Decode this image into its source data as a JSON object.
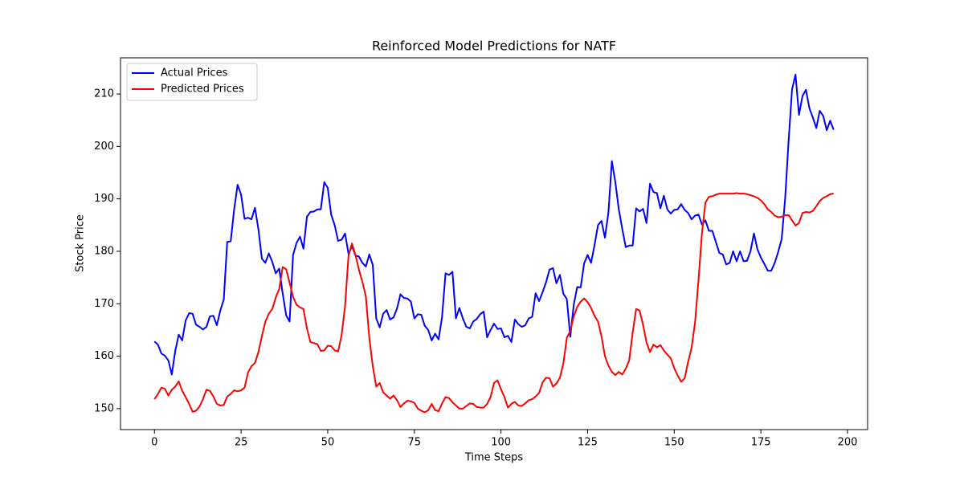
{
  "chart_data": {
    "type": "line",
    "title": "Reinforced Model Predictions for NATF",
    "xlabel": "Time Steps",
    "ylabel": "Stock Price",
    "x": [
      0,
      1,
      2,
      3,
      4,
      5,
      6,
      7,
      8,
      9,
      10,
      11,
      12,
      13,
      14,
      15,
      16,
      17,
      18,
      19,
      20,
      21,
      22,
      23,
      24,
      25,
      26,
      27,
      28,
      29,
      30,
      31,
      32,
      33,
      34,
      35,
      36,
      37,
      38,
      39,
      40,
      41,
      42,
      43,
      44,
      45,
      46,
      47,
      48,
      49,
      50,
      51,
      52,
      53,
      54,
      55,
      56,
      57,
      58,
      59,
      60,
      61,
      62,
      63,
      64,
      65,
      66,
      67,
      68,
      69,
      70,
      71,
      72,
      73,
      74,
      75,
      76,
      77,
      78,
      79,
      80,
      81,
      82,
      83,
      84,
      85,
      86,
      87,
      88,
      89,
      90,
      91,
      92,
      93,
      94,
      95,
      96,
      97,
      98,
      99,
      100,
      101,
      102,
      103,
      104,
      105,
      106,
      107,
      108,
      109,
      110,
      111,
      112,
      113,
      114,
      115,
      116,
      117,
      118,
      119,
      120,
      121,
      122,
      123,
      124,
      125,
      126,
      127,
      128,
      129,
      130,
      131,
      132,
      133,
      134,
      135,
      136,
      137,
      138,
      139,
      140,
      141,
      142,
      143,
      144,
      145,
      146,
      147,
      148,
      149,
      150,
      151,
      152,
      153,
      154,
      155,
      156,
      157,
      158,
      159,
      160,
      161,
      162,
      163,
      164,
      165,
      166,
      167,
      168,
      169,
      170,
      171,
      172,
      173,
      174,
      175,
      176,
      177,
      178,
      179,
      180,
      181,
      182,
      183,
      184,
      185,
      186,
      187,
      188,
      189,
      190,
      191,
      192,
      193,
      194,
      195,
      196
    ],
    "series": [
      {
        "name": "Actual Prices",
        "color": "#0000ff",
        "values": [
          162.8,
          162.2,
          160.5,
          160.1,
          159.2,
          156.5,
          161,
          164.1,
          163,
          166.8,
          168.2,
          168.1,
          166,
          165.6,
          165.1,
          165.6,
          167.6,
          167.7,
          165.9,
          168.7,
          170.8,
          181.8,
          181.9,
          188,
          192.7,
          190.8,
          186.2,
          186.4,
          186.1,
          188.3,
          184.2,
          178.6,
          177.8,
          179.6,
          178,
          175.8,
          176.7,
          172,
          167.8,
          166.6,
          179.3,
          181.6,
          182.8,
          180.5,
          186.6,
          187.5,
          187.6,
          188,
          188,
          193.2,
          192.1,
          187,
          185,
          182,
          182.2,
          183.4,
          179.5,
          181,
          179.2,
          179,
          177.8,
          177.1,
          179.4,
          177.4,
          167.2,
          165.5,
          168.1,
          168.8,
          167,
          167.4,
          169.1,
          171.8,
          171.1,
          171,
          170.4,
          167.2,
          168,
          167.9,
          165.8,
          165,
          163,
          164.3,
          163.2,
          167.5,
          175.8,
          175.5,
          176.1,
          167.2,
          169.2,
          167.2,
          165.6,
          165.3,
          166.6,
          167.1,
          168,
          168.5,
          163.6,
          165,
          166.2,
          165.2,
          165.3,
          163.6,
          163.9,
          162.7,
          167,
          166.1,
          165.6,
          165.9,
          167.2,
          167.5,
          172,
          170.5,
          172.2,
          174.1,
          176.5,
          176.8,
          173.9,
          175.5,
          171.9,
          170.9,
          163.7,
          169.8,
          173.2,
          173.1,
          177.7,
          179.3,
          177.8,
          181.2,
          185,
          185.8,
          182.6,
          187.4,
          197.2,
          193.2,
          188,
          184.3,
          180.8,
          181.1,
          181.1,
          188.2,
          187.6,
          188.1,
          185.4,
          192.9,
          191.3,
          191.1,
          188.2,
          190.6,
          188,
          187.2,
          187.9,
          188,
          189,
          187.9,
          187.3,
          186.1,
          186.8,
          187,
          185.1,
          185.9,
          183.9,
          183.9,
          181.8,
          179.7,
          179.4,
          177.5,
          177.8,
          180,
          178.1,
          180,
          178.1,
          178.2,
          180,
          183.4,
          180.4,
          178.8,
          177.6,
          176.3,
          176.3,
          177.8,
          179.9,
          182.3,
          190,
          201,
          210.9,
          213.7,
          206,
          209.6,
          210.8,
          207.3,
          205.5,
          203.5,
          206.8,
          205.8,
          203.1,
          204.9,
          203.2
        ]
      },
      {
        "name": "Predicted Prices",
        "color": "#ff0000",
        "values": [
          151.8,
          152.8,
          154,
          153.8,
          152.5,
          153.6,
          154.2,
          155.2,
          153.4,
          152.2,
          150.9,
          149.4,
          149.6,
          150.4,
          151.8,
          153.6,
          153.4,
          152.3,
          150.9,
          150.6,
          150.7,
          152.3,
          152.8,
          153.5,
          153.3,
          153.5,
          154,
          156.9,
          158.1,
          158.7,
          160.8,
          163.8,
          166.6,
          168.1,
          169,
          171.2,
          172.8,
          177,
          176.6,
          174,
          171.3,
          169.8,
          169.3,
          169,
          165.3,
          162.7,
          162.5,
          162.3,
          161,
          161.1,
          162,
          161.9,
          161.1,
          160.9,
          164,
          169.5,
          179.2,
          181.5,
          179.3,
          176.5,
          174.2,
          171.4,
          163.5,
          158.1,
          154.2,
          154.9,
          153.1,
          152.5,
          151.9,
          152.5,
          151.6,
          150.3,
          151,
          151.5,
          151.4,
          151.1,
          150,
          149.6,
          149.3,
          149.7,
          150.9,
          149.7,
          149.5,
          151,
          152.2,
          152,
          151.2,
          150.6,
          150,
          150,
          150.5,
          151,
          150.9,
          150.3,
          150.2,
          150.2,
          150.9,
          152.2,
          154.9,
          155.4,
          153.7,
          152.2,
          150.2,
          150.9,
          151.3,
          150.6,
          150.5,
          151,
          151.6,
          151.8,
          152.3,
          153,
          155,
          155.9,
          155.8,
          154.2,
          154.8,
          155.9,
          158.6,
          163.5,
          164.8,
          167.6,
          169.4,
          170.4,
          171,
          170.3,
          169.2,
          167.7,
          166.6,
          163.8,
          160,
          158.2,
          157,
          156.4,
          157,
          156.5,
          157.6,
          159.2,
          164.5,
          169,
          168.7,
          166,
          162.6,
          160.8,
          162.2,
          161.7,
          162.1,
          161.1,
          160.3,
          159.6,
          157.7,
          156.3,
          155.1,
          155.8,
          158.9,
          161.6,
          166.4,
          174.5,
          183.5,
          189.3,
          190.4,
          190.5,
          190.8,
          191,
          191,
          191,
          191,
          191,
          191.1,
          191,
          191,
          190.9,
          190.7,
          190.5,
          190.2,
          189.7,
          189,
          188,
          187.5,
          186.8,
          186.5,
          186.6,
          186.9,
          186.9,
          185.9,
          184.9,
          185.4,
          187.3,
          187.5,
          187.4,
          187.7,
          188.6,
          189.6,
          190.2,
          190.5,
          190.9,
          191
        ]
      }
    ],
    "xlim": [
      -9.8,
      205.8
    ],
    "xticks": [
      0,
      25,
      50,
      75,
      100,
      125,
      150,
      175,
      200
    ],
    "ylim": [
      146.0,
      216.9
    ],
    "yticks": [
      150,
      160,
      170,
      180,
      190,
      200,
      210
    ],
    "legend": "upper left"
  }
}
